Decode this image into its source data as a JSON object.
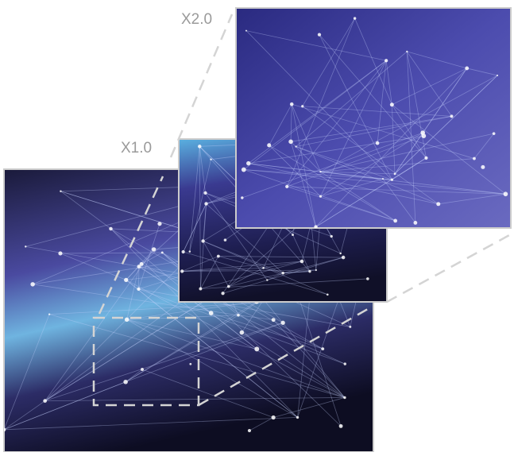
{
  "labels": {
    "zoom_high": "X2.0",
    "zoom_base": "X1.0"
  }
}
